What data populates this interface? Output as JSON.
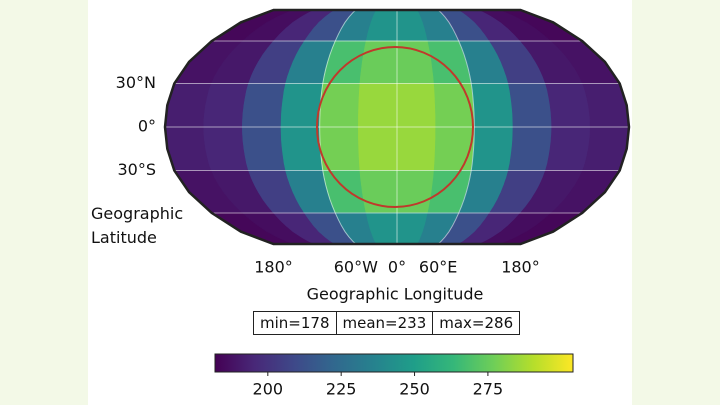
{
  "chart_data": {
    "type": "heatmap",
    "projection": "robinson",
    "colormap": "viridis",
    "grid": true,
    "xlabel": "Geographic Longitude",
    "ylabel": "Geographic Latitude",
    "lon_edges": [
      -180,
      -150,
      -120,
      -90,
      -60,
      -30,
      0,
      30,
      60,
      90,
      120,
      150,
      180
    ],
    "lat_edges": [
      90,
      60,
      30,
      0,
      -30,
      -60,
      -90
    ],
    "values": [
      [
        184,
        186,
        195,
        212,
        235,
        245,
        245,
        235,
        212,
        195,
        186,
        184
      ],
      [
        188,
        190,
        205,
        235,
        268,
        276,
        276,
        268,
        235,
        205,
        190,
        188
      ],
      [
        192,
        195,
        212,
        245,
        278,
        285,
        285,
        278,
        245,
        212,
        195,
        192
      ],
      [
        192,
        195,
        212,
        245,
        278,
        285,
        285,
        278,
        245,
        212,
        195,
        192
      ],
      [
        188,
        190,
        205,
        235,
        268,
        276,
        276,
        268,
        235,
        205,
        190,
        188
      ],
      [
        184,
        186,
        195,
        212,
        235,
        245,
        245,
        235,
        212,
        195,
        186,
        184
      ]
    ],
    "xticks": [
      {
        "value": -180,
        "label": "180°"
      },
      {
        "value": -60,
        "label": "60°W"
      },
      {
        "value": 0,
        "label": "0°"
      },
      {
        "value": 60,
        "label": "60°E"
      },
      {
        "value": 180,
        "label": "180°"
      }
    ],
    "yticks": [
      {
        "value": 30,
        "label": "30°N"
      },
      {
        "value": 0,
        "label": "0°"
      },
      {
        "value": -30,
        "label": "30°S"
      }
    ],
    "stats": [
      "min=178",
      "mean=233",
      "max=286"
    ],
    "colorbar": {
      "lim": [
        182,
        304
      ],
      "ticks": [
        200,
        225,
        250,
        275
      ]
    }
  }
}
